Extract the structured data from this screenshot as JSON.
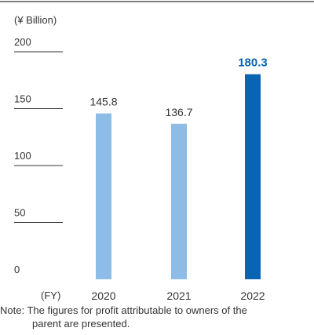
{
  "chart_data": {
    "type": "bar",
    "unit_label": "(¥ Billion)",
    "x_unit_label": "(FY)",
    "categories": [
      "2020",
      "2021",
      "2022"
    ],
    "values": [
      145.8,
      136.7,
      180.3
    ],
    "value_labels": [
      "145.8",
      "136.7",
      "180.3"
    ],
    "highlight_index": 2,
    "ylim": [
      0,
      200
    ],
    "y_ticks": [
      "0",
      "50",
      "100",
      "150",
      "200"
    ],
    "colors": {
      "bar": "#8dbde6",
      "highlight_bar": "#0a64b4",
      "highlight_label": "#0a64b4",
      "gridline": "#333333"
    }
  },
  "note": {
    "line1": "Note: The figures for profit attributable to owners of the",
    "line2": "parent are presented."
  }
}
